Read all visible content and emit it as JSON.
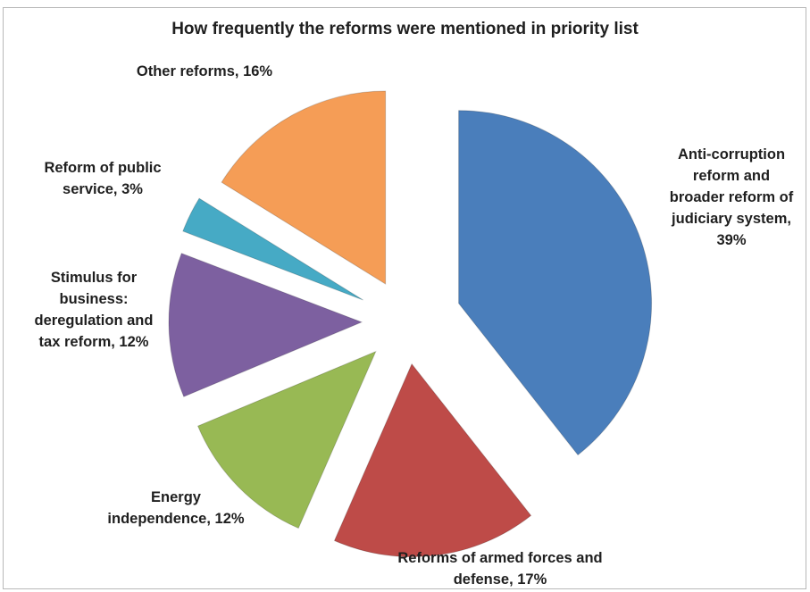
{
  "chart_data": {
    "type": "pie",
    "title": "How frequently the reforms were mentioned in priority list",
    "exploded": true,
    "slices": [
      {
        "label_lines": [
          "Anti-corruption",
          "reform and",
          "broader reform of",
          "judiciary system,",
          "39%"
        ],
        "value": 39,
        "color": "#4a7ebb"
      },
      {
        "label_lines": [
          "Reforms of armed forces and",
          "defense, 17%"
        ],
        "value": 17,
        "color": "#be4b48"
      },
      {
        "label_lines": [
          "Energy",
          "independence, 12%"
        ],
        "value": 12,
        "color": "#98b954"
      },
      {
        "label_lines": [
          "Stimulus for",
          "business:",
          "deregulation and",
          "tax reform, 12%"
        ],
        "value": 12,
        "color": "#7d60a0"
      },
      {
        "label_lines": [
          "Reform of public",
          "service, 3%"
        ],
        "value": 3,
        "color": "#46aac5"
      },
      {
        "label_lines": [
          "Other reforms, 16%"
        ],
        "value": 16,
        "color": "#f59d56"
      }
    ]
  }
}
